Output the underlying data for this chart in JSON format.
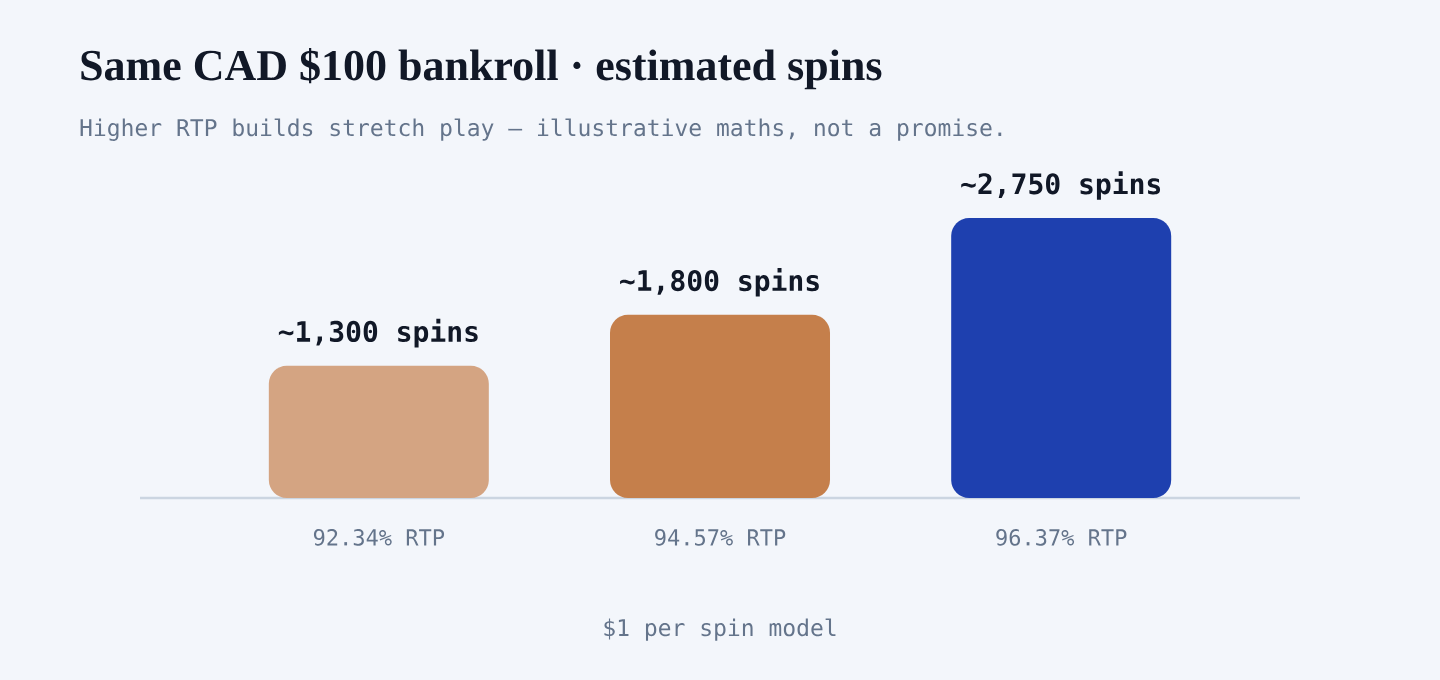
{
  "chart_data": {
    "type": "bar",
    "title": "Same CAD $100 bankroll · estimated spins",
    "subtitle": "Higher RTP builds stretch play — illustrative maths, not a promise.",
    "categories": [
      "92.34% RTP",
      "94.57% RTP",
      "96.37% RTP"
    ],
    "values": [
      1300,
      1800,
      2750
    ],
    "value_labels": [
      "~1,300 spins",
      "~1,800 spins",
      "~2,750 spins"
    ],
    "colors": [
      "#d4a482",
      "#c57f4b",
      "#1e40af"
    ],
    "annotations": [
      "$1 per spin model"
    ]
  }
}
